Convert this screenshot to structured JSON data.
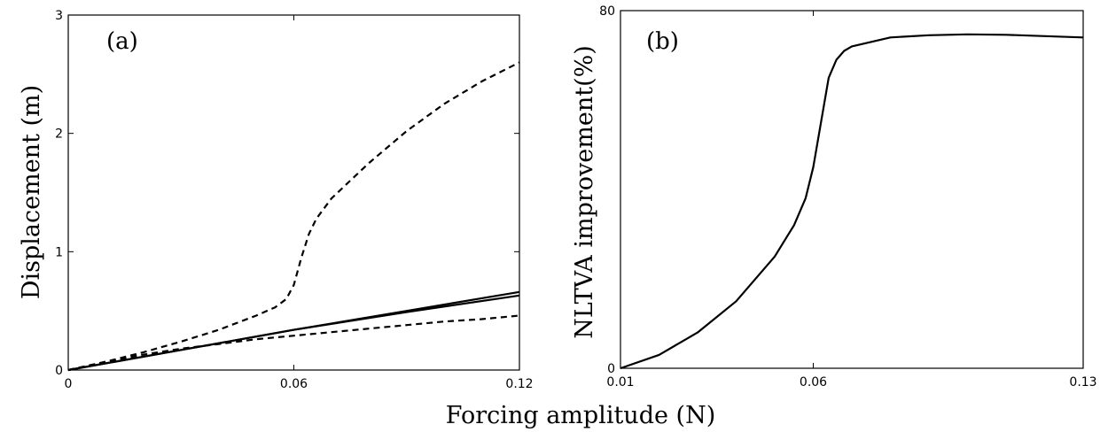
{
  "figure": {
    "shared_xlabel": "Forcing amplitude (N)"
  },
  "chart_data": [
    {
      "type": "line",
      "panel": "(a)",
      "title": "",
      "xlabel": "",
      "ylabel": "Displacement (m)",
      "xlim": [
        0,
        0.12
      ],
      "ylim": [
        0,
        3
      ],
      "xticks": [
        0,
        0.06,
        0.12
      ],
      "xtick_labels": [
        "0",
        "0.06",
        "0.12"
      ],
      "yticks": [
        0,
        1,
        2,
        3
      ],
      "ytick_labels": [
        "0",
        "1",
        "2",
        "3"
      ],
      "grid": false,
      "series": [
        {
          "style": "dashed",
          "x": [
            0,
            0.01,
            0.02,
            0.03,
            0.04,
            0.05,
            0.055,
            0.058,
            0.06,
            0.062,
            0.064,
            0.066,
            0.07,
            0.075,
            0.08,
            0.09,
            0.1,
            0.11,
            0.12
          ],
          "y": [
            0,
            0.07,
            0.15,
            0.24,
            0.34,
            0.46,
            0.53,
            0.6,
            0.72,
            0.95,
            1.15,
            1.28,
            1.45,
            1.6,
            1.75,
            2.02,
            2.25,
            2.44,
            2.6
          ]
        },
        {
          "style": "dashed",
          "x": [
            0,
            0.01,
            0.02,
            0.03,
            0.04,
            0.05,
            0.06,
            0.07,
            0.08,
            0.09,
            0.1,
            0.11,
            0.12
          ],
          "y": [
            0,
            0.07,
            0.13,
            0.18,
            0.22,
            0.26,
            0.29,
            0.32,
            0.35,
            0.38,
            0.41,
            0.43,
            0.46
          ]
        },
        {
          "style": "solid",
          "x": [
            0,
            0.03,
            0.06,
            0.09,
            0.12
          ],
          "y": [
            0,
            0.17,
            0.34,
            0.5,
            0.66
          ]
        },
        {
          "style": "solid",
          "x": [
            0,
            0.03,
            0.06,
            0.09,
            0.12
          ],
          "y": [
            0,
            0.17,
            0.34,
            0.49,
            0.63
          ]
        }
      ]
    },
    {
      "type": "line",
      "panel": "(b)",
      "title": "",
      "xlabel": "",
      "ylabel": "NLTVA improvement(%)",
      "xlim": [
        0.01,
        0.13
      ],
      "ylim": [
        0,
        80
      ],
      "xticks": [
        0.01,
        0.06,
        0.13
      ],
      "xtick_labels": [
        "0.01",
        "0.06",
        "0.13"
      ],
      "yticks": [
        0,
        80
      ],
      "ytick_labels": [
        "0",
        "80"
      ],
      "grid": false,
      "series": [
        {
          "style": "solid",
          "x": [
            0.01,
            0.02,
            0.03,
            0.04,
            0.05,
            0.055,
            0.058,
            0.06,
            0.062,
            0.064,
            0.066,
            0.068,
            0.07,
            0.08,
            0.09,
            0.1,
            0.11,
            0.12,
            0.13
          ],
          "y": [
            0,
            3,
            8,
            15,
            25,
            32,
            38,
            45,
            55,
            65,
            69,
            71,
            72,
            74,
            74.5,
            74.7,
            74.6,
            74.3,
            74
          ]
        }
      ]
    }
  ]
}
